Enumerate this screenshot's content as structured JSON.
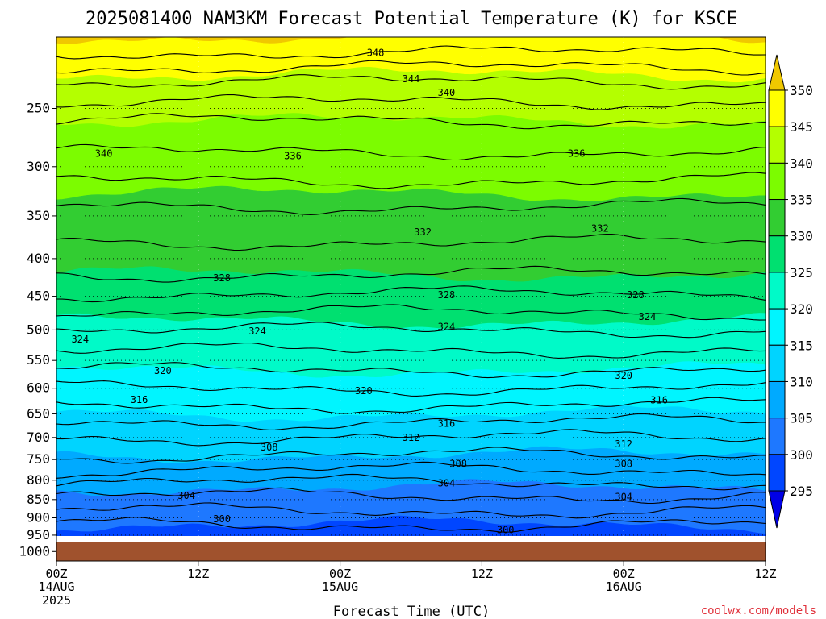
{
  "title": "2025081400 NAM3KM Forecast Potential Temperature (K) for KSCE",
  "credit": "coolwx.com/models",
  "chart_data": {
    "type": "heatmap",
    "title": "2025081400 NAM3KM Forecast Potential Temperature (K) for KSCE",
    "xlabel": "Forecast Time (UTC)",
    "ylabel": "",
    "x_range_hours": [
      0,
      60
    ],
    "y_range_hpa": [
      200,
      1030
    ],
    "y_scale": "log",
    "grid": true,
    "x_ticks": [
      {
        "hour": 0,
        "label": "00Z",
        "date": "14AUG",
        "year": "2025"
      },
      {
        "hour": 12,
        "label": "12Z"
      },
      {
        "hour": 24,
        "label": "00Z",
        "date": "15AUG"
      },
      {
        "hour": 36,
        "label": "12Z"
      },
      {
        "hour": 48,
        "label": "00Z",
        "date": "16AUG"
      },
      {
        "hour": 60,
        "label": "12Z"
      }
    ],
    "y_ticks": [
      {
        "p": 250,
        "label": "250"
      },
      {
        "p": 300,
        "label": "300"
      },
      {
        "p": 350,
        "label": "350"
      },
      {
        "p": 400,
        "label": "400"
      },
      {
        "p": 450,
        "label": "450"
      },
      {
        "p": 500,
        "label": "500"
      },
      {
        "p": 550,
        "label": "550"
      },
      {
        "p": 600,
        "label": "600"
      },
      {
        "p": 650,
        "label": "650"
      },
      {
        "p": 700,
        "label": "700"
      },
      {
        "p": 750,
        "label": "750"
      },
      {
        "p": 800,
        "label": "800"
      },
      {
        "p": 850,
        "label": "850"
      },
      {
        "p": 900,
        "label": "900"
      },
      {
        "p": 950,
        "label": "950"
      },
      {
        "p": 1000,
        "label": "1000"
      }
    ],
    "surface_pressure_hpa": 970,
    "colorbar": {
      "labels": [
        "350",
        "345",
        "340",
        "335",
        "330",
        "325",
        "320",
        "315",
        "310",
        "305",
        "300",
        "295"
      ],
      "colors": [
        "#f0c800",
        "#ffff00",
        "#b4ff00",
        "#7cfc00",
        "#32cd32",
        "#00e070",
        "#00fac8",
        "#00f5ff",
        "#00d4ff",
        "#00aaff",
        "#1e78ff",
        "#0046ff",
        "#0000e6"
      ]
    },
    "contour_levels": [
      348,
      346,
      344,
      342,
      340,
      338,
      336,
      334,
      332,
      330,
      328,
      326,
      324,
      322,
      320,
      318,
      316,
      314,
      312,
      310,
      308,
      306,
      304,
      302,
      300
    ],
    "contour_labels": [
      {
        "text": "348",
        "hour": 27.0,
        "p": 210
      },
      {
        "text": "344",
        "hour": 30.0,
        "p": 228
      },
      {
        "text": "340",
        "hour": 33.0,
        "p": 238
      },
      {
        "text": "340",
        "hour": 4.0,
        "p": 288
      },
      {
        "text": "336",
        "hour": 20.0,
        "p": 290
      },
      {
        "text": "336",
        "hour": 44.0,
        "p": 288
      },
      {
        "text": "332",
        "hour": 31.0,
        "p": 368
      },
      {
        "text": "332",
        "hour": 46.0,
        "p": 364
      },
      {
        "text": "328",
        "hour": 14.0,
        "p": 425
      },
      {
        "text": "328",
        "hour": 33.0,
        "p": 448
      },
      {
        "text": "328",
        "hour": 49.0,
        "p": 448
      },
      {
        "text": "324",
        "hour": 2.0,
        "p": 515
      },
      {
        "text": "324",
        "hour": 17.0,
        "p": 502
      },
      {
        "text": "324",
        "hour": 33.0,
        "p": 495
      },
      {
        "text": "324",
        "hour": 50.0,
        "p": 480
      },
      {
        "text": "320",
        "hour": 9.0,
        "p": 568
      },
      {
        "text": "320",
        "hour": 26.0,
        "p": 605
      },
      {
        "text": "320",
        "hour": 48.0,
        "p": 577
      },
      {
        "text": "316",
        "hour": 7.0,
        "p": 622
      },
      {
        "text": "316",
        "hour": 33.0,
        "p": 670
      },
      {
        "text": "316",
        "hour": 51.0,
        "p": 623
      },
      {
        "text": "312",
        "hour": 30.0,
        "p": 700
      },
      {
        "text": "312",
        "hour": 48.0,
        "p": 715
      },
      {
        "text": "308",
        "hour": 18.0,
        "p": 722
      },
      {
        "text": "308",
        "hour": 34.0,
        "p": 760
      },
      {
        "text": "308",
        "hour": 48.0,
        "p": 760
      },
      {
        "text": "304",
        "hour": 11.0,
        "p": 840
      },
      {
        "text": "304",
        "hour": 33.0,
        "p": 808
      },
      {
        "text": "304",
        "hour": 48.0,
        "p": 843
      },
      {
        "text": "300",
        "hour": 14.0,
        "p": 903
      },
      {
        "text": "300",
        "hour": 38.0,
        "p": 935
      }
    ]
  }
}
